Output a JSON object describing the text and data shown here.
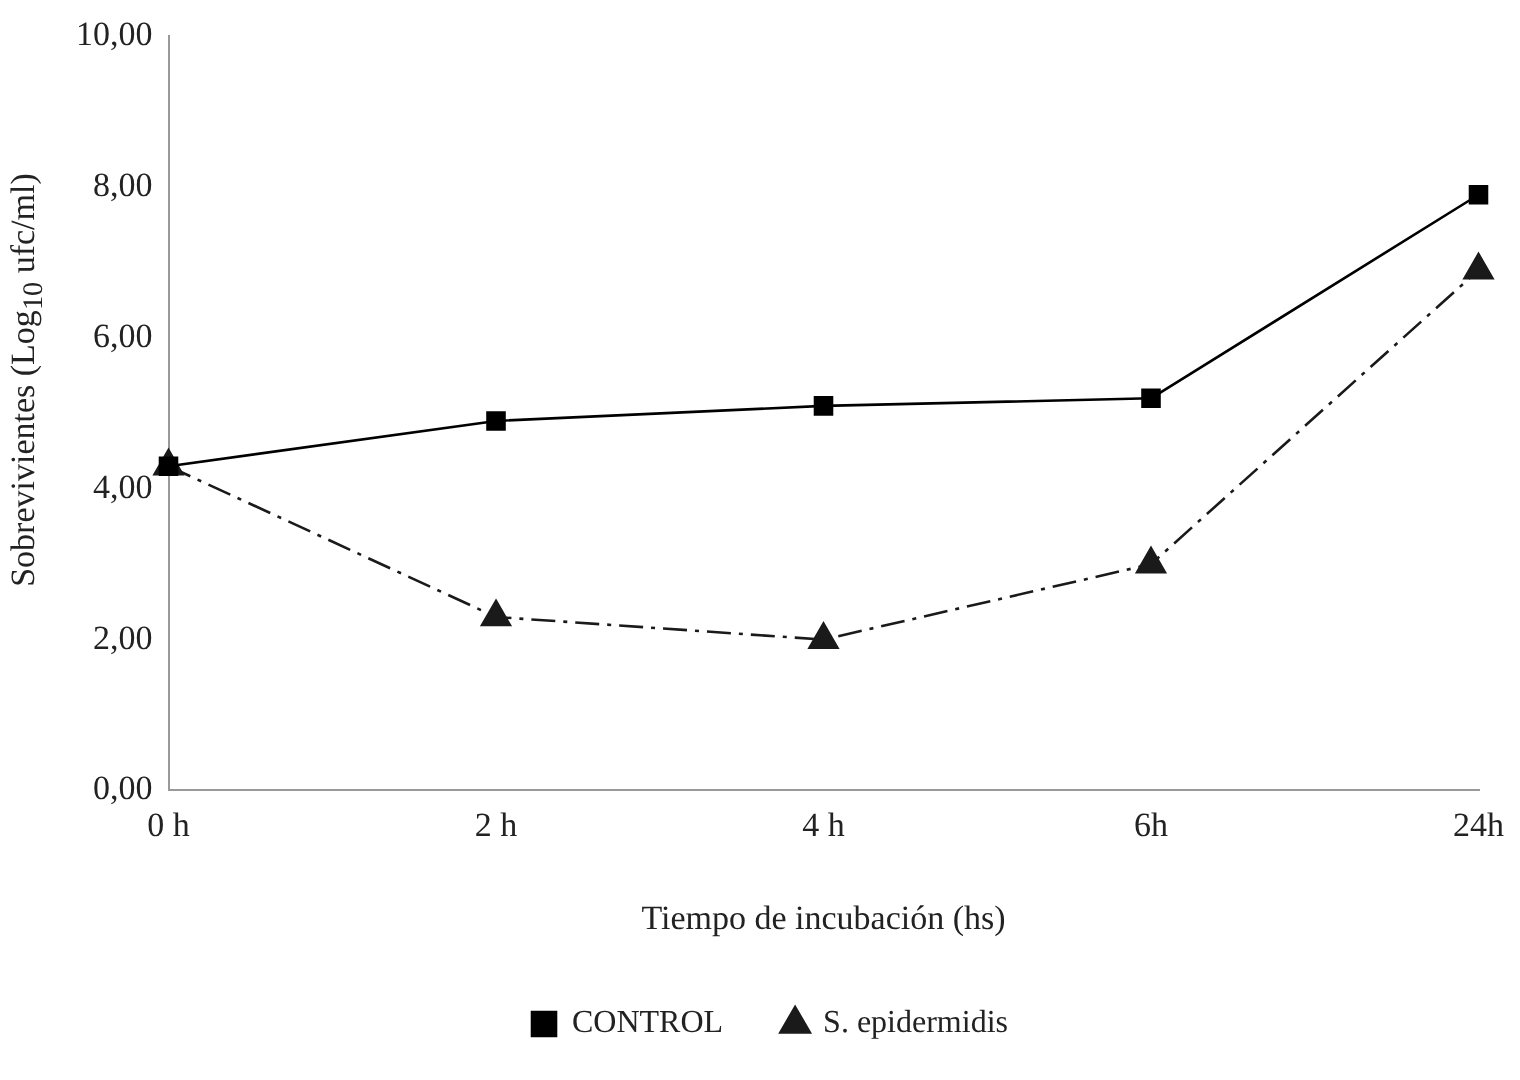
{
  "chart_data": {
    "type": "line",
    "xlabel": "Tiempo de incubación (hs)",
    "ylabel": "Sobrevivientes (Log$_{10}$ ufc/ml)",
    "categories": [
      "0 h",
      "2 h",
      "4 h",
      "6h",
      "24h"
    ],
    "series": [
      {
        "name": "CONTROL",
        "color": "#000000",
        "marker": "square",
        "line_style": "solid",
        "values": [
          4.3,
          4.9,
          5.1,
          5.2,
          7.9
        ]
      },
      {
        "name": "S. epidermidis",
        "color": "#1a1a1a",
        "marker": "triangle",
        "line_style": "dashed",
        "values": [
          4.3,
          2.3,
          2.0,
          3.0,
          6.9
        ]
      }
    ],
    "ylim": [
      0,
      10
    ],
    "yticks": [
      {
        "value": 0,
        "label": "0,00"
      },
      {
        "value": 2,
        "label": "2,00"
      },
      {
        "value": 4,
        "label": "4,00"
      },
      {
        "value": 6,
        "label": "6,00"
      },
      {
        "value": 8,
        "label": "8,00"
      },
      {
        "value": 10,
        "label": "10,00"
      }
    ],
    "grid": false,
    "legend": "bottom"
  }
}
